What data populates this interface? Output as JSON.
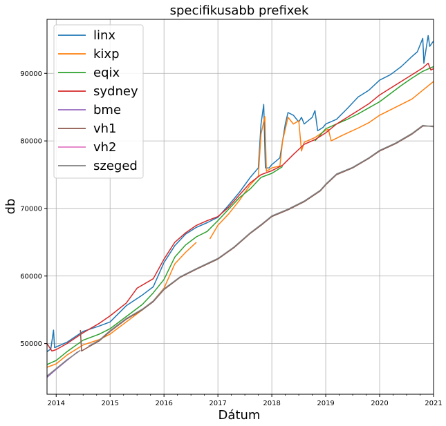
{
  "chart_data": {
    "type": "line",
    "title": "specifikusabb prefixek",
    "xlabel": "Dátum",
    "ylabel": "db",
    "xlim": [
      2013.83,
      2021.0
    ],
    "ylim": [
      42500,
      98000
    ],
    "x_ticks": [
      2014,
      2015,
      2016,
      2017,
      2018,
      2019,
      2020,
      2021
    ],
    "y_ticks": [
      50000,
      60000,
      70000,
      80000,
      90000
    ],
    "grid": true,
    "legend_position": "top-left",
    "series": [
      {
        "name": "linx",
        "color": "#1f77b4",
        "points": [
          [
            2013.83,
            48800
          ],
          [
            2013.9,
            49200
          ],
          [
            2013.95,
            52000
          ],
          [
            2013.97,
            49400
          ],
          [
            2014.2,
            50200
          ],
          [
            2014.5,
            51800
          ],
          [
            2014.8,
            52600
          ],
          [
            2015.0,
            53200
          ],
          [
            2015.3,
            55600
          ],
          [
            2015.6,
            57200
          ],
          [
            2015.8,
            58400
          ],
          [
            2016.0,
            62000
          ],
          [
            2016.2,
            64500
          ],
          [
            2016.4,
            66200
          ],
          [
            2016.6,
            67200
          ],
          [
            2016.8,
            67900
          ],
          [
            2017.0,
            68700
          ],
          [
            2017.2,
            70500
          ],
          [
            2017.4,
            72400
          ],
          [
            2017.6,
            74600
          ],
          [
            2017.75,
            76000
          ],
          [
            2017.8,
            82500
          ],
          [
            2017.85,
            85400
          ],
          [
            2017.88,
            76000
          ],
          [
            2017.95,
            76000
          ],
          [
            2018.0,
            76500
          ],
          [
            2018.15,
            77500
          ],
          [
            2018.25,
            82500
          ],
          [
            2018.3,
            84200
          ],
          [
            2018.4,
            83800
          ],
          [
            2018.5,
            82800
          ],
          [
            2018.55,
            83500
          ],
          [
            2018.6,
            82500
          ],
          [
            2018.75,
            83500
          ],
          [
            2018.8,
            84500
          ],
          [
            2018.85,
            81500
          ],
          [
            2018.95,
            82000
          ],
          [
            2019.0,
            82500
          ],
          [
            2019.2,
            83200
          ],
          [
            2019.4,
            84800
          ],
          [
            2019.6,
            86500
          ],
          [
            2019.8,
            87500
          ],
          [
            2020.0,
            89000
          ],
          [
            2020.2,
            89800
          ],
          [
            2020.4,
            91000
          ],
          [
            2020.6,
            92500
          ],
          [
            2020.7,
            93200
          ],
          [
            2020.8,
            95200
          ],
          [
            2020.82,
            91500
          ],
          [
            2020.9,
            95600
          ],
          [
            2020.93,
            94000
          ],
          [
            2021.0,
            94800
          ]
        ]
      },
      {
        "name": "kixp",
        "color": "#ff7f0e",
        "points": [
          [
            2013.83,
            46500
          ],
          [
            2014.0,
            47000
          ],
          [
            2014.2,
            48300
          ],
          [
            2014.5,
            49800
          ],
          [
            2014.8,
            50600
          ],
          [
            2015.0,
            51400
          ],
          [
            2015.3,
            53200
          ],
          [
            2015.6,
            55000
          ],
          [
            2015.8,
            56300
          ],
          [
            2016.0,
            58200
          ],
          [
            2016.2,
            61800
          ],
          [
            2016.4,
            63500
          ],
          [
            2016.6,
            65000
          ],
          [
            2016.8,
            null
          ],
          [
            2016.85,
            65500
          ],
          [
            2017.0,
            67500
          ],
          [
            2017.2,
            69200
          ],
          [
            2017.4,
            71200
          ],
          [
            2017.6,
            73500
          ],
          [
            2017.75,
            74800
          ],
          [
            2017.8,
            81000
          ],
          [
            2017.87,
            83600
          ],
          [
            2017.9,
            75500
          ],
          [
            2018.0,
            76000
          ],
          [
            2018.15,
            76300
          ],
          [
            2018.2,
            80000
          ],
          [
            2018.3,
            83500
          ],
          [
            2018.4,
            82500
          ],
          [
            2018.5,
            83000
          ],
          [
            2018.55,
            78500
          ],
          [
            2018.6,
            79800
          ],
          [
            2018.8,
            80500
          ],
          [
            2019.0,
            81600
          ],
          [
            2019.05,
            81700
          ],
          [
            2019.1,
            80000
          ],
          [
            2019.3,
            80800
          ],
          [
            2019.6,
            81900
          ],
          [
            2019.8,
            82700
          ],
          [
            2020.0,
            83800
          ],
          [
            2020.3,
            85000
          ],
          [
            2020.6,
            86200
          ],
          [
            2020.8,
            87500
          ],
          [
            2021.0,
            88800
          ]
        ]
      },
      {
        "name": "eqix",
        "color": "#2ca02c",
        "points": [
          [
            2013.83,
            46900
          ],
          [
            2014.0,
            47500
          ],
          [
            2014.2,
            48800
          ],
          [
            2014.5,
            50500
          ],
          [
            2014.8,
            51400
          ],
          [
            2015.0,
            52200
          ],
          [
            2015.3,
            54000
          ],
          [
            2015.6,
            55800
          ],
          [
            2015.8,
            57500
          ],
          [
            2016.0,
            59500
          ],
          [
            2016.2,
            62800
          ],
          [
            2016.4,
            64600
          ],
          [
            2016.6,
            65800
          ],
          [
            2016.8,
            66600
          ],
          [
            2017.0,
            68200
          ],
          [
            2017.2,
            69900
          ],
          [
            2017.4,
            71600
          ],
          [
            2017.6,
            72900
          ],
          [
            2017.8,
            74600
          ],
          [
            2018.0,
            75200
          ],
          [
            2018.2,
            76200
          ],
          [
            2018.25,
            null
          ],
          [
            2018.8,
            80000
          ],
          [
            2019.0,
            81800
          ],
          [
            2019.2,
            82500
          ],
          [
            2019.4,
            83200
          ],
          [
            2019.6,
            84000
          ],
          [
            2019.8,
            84900
          ],
          [
            2020.0,
            85800
          ],
          [
            2020.2,
            87000
          ],
          [
            2020.4,
            88200
          ],
          [
            2020.6,
            89300
          ],
          [
            2020.8,
            90300
          ],
          [
            2021.0,
            91000
          ]
        ]
      },
      {
        "name": "sydney",
        "color": "#d62728",
        "points": [
          [
            2013.83,
            50000
          ],
          [
            2013.92,
            48900
          ],
          [
            2014.0,
            49100
          ],
          [
            2014.2,
            50000
          ],
          [
            2014.5,
            51600
          ],
          [
            2014.8,
            53000
          ],
          [
            2015.0,
            54100
          ],
          [
            2015.3,
            56000
          ],
          [
            2015.5,
            58200
          ],
          [
            2015.8,
            59600
          ],
          [
            2016.0,
            62500
          ],
          [
            2016.2,
            65000
          ],
          [
            2016.4,
            66400
          ],
          [
            2016.6,
            67500
          ],
          [
            2016.8,
            68200
          ],
          [
            2017.0,
            68800
          ],
          [
            2017.2,
            70200
          ],
          [
            2017.4,
            72000
          ],
          [
            2017.6,
            73800
          ],
          [
            2017.8,
            75000
          ],
          [
            2018.0,
            75600
          ],
          [
            2018.2,
            76400
          ],
          [
            2018.4,
            78000
          ],
          [
            2018.6,
            79500
          ],
          [
            2018.8,
            80200
          ],
          [
            2019.0,
            81200
          ],
          [
            2019.2,
            82500
          ],
          [
            2019.4,
            83500
          ],
          [
            2019.6,
            84500
          ],
          [
            2019.8,
            85500
          ],
          [
            2020.0,
            86800
          ],
          [
            2020.2,
            87800
          ],
          [
            2020.4,
            88800
          ],
          [
            2020.6,
            89800
          ],
          [
            2020.8,
            90800
          ],
          [
            2020.9,
            91500
          ],
          [
            2020.95,
            90500
          ],
          [
            2021.0,
            90700
          ]
        ]
      },
      {
        "name": "bme",
        "color": "#9467bd",
        "points": [
          [
            2013.83,
            45000
          ],
          [
            2014.0,
            46200
          ],
          [
            2014.2,
            47500
          ],
          [
            2014.4,
            48800
          ],
          [
            2014.45,
            null
          ]
        ]
      },
      {
        "name": "vh1",
        "color": "#8c564b",
        "points": [
          [
            2014.45,
            52000
          ],
          [
            2014.47,
            48900
          ],
          [
            2014.6,
            49500
          ],
          [
            2014.8,
            50400
          ],
          [
            2015.0,
            51800
          ],
          [
            2015.3,
            53600
          ],
          [
            2015.6,
            55000
          ],
          [
            2015.8,
            56200
          ],
          [
            2016.0,
            58000
          ],
          [
            2016.3,
            59800
          ],
          [
            2016.6,
            61000
          ],
          [
            2017.0,
            62500
          ],
          [
            2017.3,
            64200
          ],
          [
            2017.6,
            66300
          ],
          [
            2017.8,
            67500
          ],
          [
            2018.0,
            68800
          ],
          [
            2018.3,
            69800
          ],
          [
            2018.6,
            71000
          ],
          [
            2018.9,
            72600
          ],
          [
            2019.0,
            73500
          ],
          [
            2019.2,
            75000
          ],
          [
            2019.5,
            76000
          ],
          [
            2019.8,
            77400
          ],
          [
            2020.0,
            78500
          ],
          [
            2020.3,
            79600
          ],
          [
            2020.6,
            81000
          ],
          [
            2020.8,
            82200
          ],
          [
            2021.0,
            82200
          ]
        ]
      },
      {
        "name": "vh2",
        "color": "#e377c2",
        "points": []
      },
      {
        "name": "szeged",
        "color": "#7f7f7f",
        "points": [
          [
            2013.83,
            45200
          ],
          [
            2014.0,
            46300
          ],
          [
            2014.2,
            47600
          ],
          [
            2014.45,
            49000
          ],
          [
            2014.47,
            null
          ],
          [
            2014.6,
            49600
          ],
          [
            2014.8,
            50500
          ],
          [
            2015.0,
            51900
          ],
          [
            2015.3,
            53700
          ],
          [
            2015.6,
            55100
          ],
          [
            2015.8,
            56300
          ],
          [
            2016.0,
            58100
          ],
          [
            2016.3,
            59900
          ],
          [
            2016.6,
            61100
          ],
          [
            2017.0,
            62600
          ],
          [
            2017.3,
            64300
          ],
          [
            2017.6,
            66400
          ],
          [
            2017.8,
            67600
          ],
          [
            2018.0,
            68900
          ],
          [
            2018.3,
            69900
          ],
          [
            2018.6,
            71100
          ],
          [
            2018.9,
            72700
          ],
          [
            2019.0,
            73600
          ],
          [
            2019.2,
            75100
          ],
          [
            2019.5,
            76100
          ],
          [
            2019.8,
            77500
          ],
          [
            2020.0,
            78600
          ],
          [
            2020.3,
            79700
          ],
          [
            2020.6,
            81100
          ],
          [
            2020.8,
            82300
          ],
          [
            2021.0,
            82100
          ]
        ]
      }
    ]
  }
}
